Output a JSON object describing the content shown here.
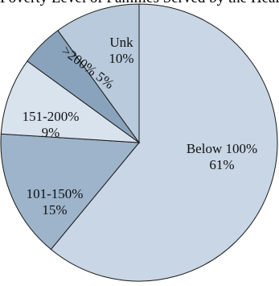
{
  "chart_data": {
    "type": "pie",
    "title": "Poverty Level of Families Served by the Health Department",
    "start_angle_deg": 0,
    "direction": "clockwise",
    "slices": [
      {
        "label": "Below 100%",
        "value": 61,
        "percent_label": "61%",
        "color": "#c8d6e5"
      },
      {
        "label": "101-150%",
        "value": 15,
        "percent_label": "15%",
        "color": "#9db4cb"
      },
      {
        "label": "151-200%",
        "value": 9,
        "percent_label": "9%",
        "color": "#d9e3ee"
      },
      {
        "label": ">200%",
        "value": 5,
        "percent_label": "5%",
        "color": "#8aa3bc"
      },
      {
        "label": "Unk",
        "value": 10,
        "percent_label": "10%",
        "color": "#b8cadc"
      }
    ],
    "legend": "none",
    "grid": false
  }
}
